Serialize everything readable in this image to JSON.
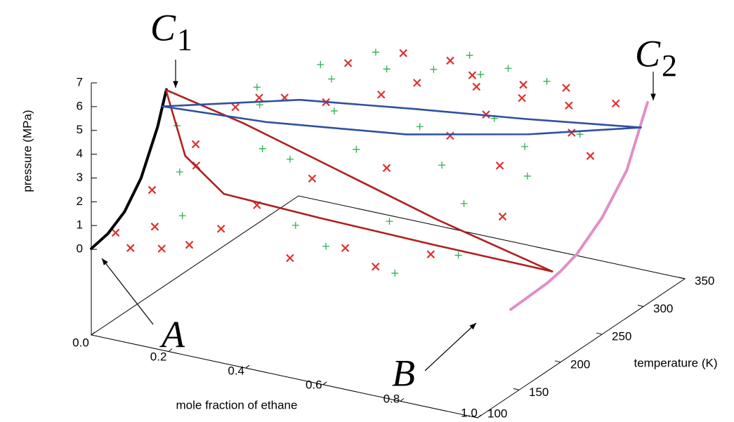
{
  "chart_data": {
    "type": "scatter3d",
    "xlabel": "mole fraction of ethane",
    "ylabel": "temperature (K)",
    "zlabel": "pressure (MPa)",
    "xlim": [
      0,
      1
    ],
    "ylim": [
      100,
      350
    ],
    "zlim": [
      -3.6,
      7
    ],
    "xticks": [
      {
        "value": 0,
        "label": "0.0"
      },
      0.2,
      0.4,
      0.6,
      0.8,
      {
        "value": 1,
        "label": "1.0"
      }
    ],
    "yticks": [
      100,
      150,
      200,
      250,
      300,
      350
    ],
    "zticks": [
      0,
      1,
      2,
      3,
      4,
      5,
      6,
      7
    ],
    "series": [
      {
        "marker": "x",
        "color": "#e03030",
        "x": [
          0.02,
          0.05,
          0.08,
          0.1,
          0.12,
          0.15,
          0.18,
          0.2,
          0.22,
          0.25,
          0.3,
          0.35,
          0.4,
          0.45,
          0.5,
          0.55,
          0.6,
          0.65,
          0.7,
          0.75,
          0.8,
          0.85,
          0.9,
          0.95,
          0.97,
          0.3,
          0.4,
          0.5,
          0.6,
          0.7,
          0.8,
          0.2,
          0.1,
          0.45,
          0.55,
          0.65,
          0.75,
          0.85
        ],
        "y": [
          120,
          150,
          110,
          130,
          170,
          115,
          190,
          125,
          200,
          140,
          160,
          220,
          180,
          240,
          260,
          200,
          280,
          230,
          250,
          270,
          220,
          280,
          260,
          290,
          250,
          270,
          290,
          300,
          285,
          295,
          300,
          240,
          180,
          130,
          150,
          140,
          160,
          200
        ],
        "z": [
          0.3,
          1.5,
          0.1,
          0.6,
          3.2,
          0.2,
          4.5,
          0.3,
          4.8,
          0.8,
          1.5,
          4.6,
          2.5,
          4.8,
          5.0,
          3.0,
          5.2,
          4.0,
          4.6,
          5.0,
          3.5,
          4.8,
          4.3,
          5.0,
          3.8,
          4.9,
          5.2,
          5.0,
          4.6,
          4.8,
          4.9,
          3.8,
          2.0,
          0.5,
          0.8,
          0.6,
          1.0,
          2.0
        ]
      },
      {
        "marker": "+",
        "color": "#30b050",
        "x": [
          0.05,
          0.1,
          0.15,
          0.2,
          0.25,
          0.3,
          0.35,
          0.4,
          0.45,
          0.5,
          0.55,
          0.6,
          0.65,
          0.7,
          0.75,
          0.8,
          0.85,
          0.9,
          0.3,
          0.4,
          0.5,
          0.6,
          0.7,
          0.8,
          0.15,
          0.25,
          0.35,
          0.55,
          0.65,
          0.75
        ],
        "y": [
          180,
          160,
          140,
          210,
          190,
          250,
          230,
          270,
          210,
          280,
          240,
          290,
          220,
          260,
          200,
          250,
          230,
          270,
          200,
          160,
          150,
          180,
          140,
          170,
          230,
          260,
          280,
          300,
          300,
          300
        ],
        "z": [
          3.5,
          2.2,
          1.0,
          4.2,
          3.0,
          4.7,
          4.0,
          5.0,
          3.2,
          5.1,
          3.8,
          5.0,
          3.0,
          4.2,
          2.2,
          3.6,
          3.0,
          4.0,
          2.5,
          1.0,
          0.7,
          1.4,
          0.5,
          0.9,
          4.3,
          4.9,
          5.3,
          5.4,
          5.2,
          5.0
        ]
      }
    ],
    "lines": [
      {
        "color": "#000000",
        "x": [
          0,
          0,
          0,
          0,
          0,
          0
        ],
        "y": [
          100,
          120,
          140,
          160,
          180,
          190.6
        ],
        "z": [
          0.03,
          0.19,
          0.64,
          1.59,
          3.28,
          4.6
        ]
      },
      {
        "color": "#e090c8",
        "x": [
          1,
          1,
          1,
          1,
          1,
          1,
          1
        ],
        "y": [
          140,
          184,
          200,
          220,
          250,
          280,
          305
        ],
        "z": [
          0.02,
          0.1,
          0.22,
          0.49,
          1.3,
          2.6,
          4.87
        ]
      },
      {
        "color": "#b02020",
        "x": [
          0,
          0.2,
          0.44,
          0.7,
          1
        ],
        "y": [
          190,
          190,
          190,
          190,
          190
        ],
        "z": [
          4.6,
          3.9,
          2.8,
          1.6,
          0.45
        ]
      },
      {
        "color": "#b02020",
        "x": [
          0,
          0.05,
          0.15,
          0.4,
          0.7,
          1
        ],
        "y": [
          190,
          190,
          190,
          190,
          190,
          190
        ],
        "z": [
          4.6,
          2.0,
          0.75,
          0.6,
          0.5,
          0.45
        ]
      },
      {
        "color": "#3050a0",
        "x": [
          0,
          0.25,
          0.5,
          0.75,
          1
        ],
        "y": [
          186,
          235,
          256,
          275,
          297
        ],
        "z": [
          4,
          4,
          4,
          4,
          4
        ]
      },
      {
        "color": "#3050a0",
        "x": [
          0,
          0.25,
          0.56,
          0.8,
          1
        ],
        "y": [
          186,
          195,
          219,
          255,
          297
        ],
        "z": [
          4,
          4,
          4,
          4,
          4
        ]
      }
    ],
    "annotations": [
      {
        "text": "C",
        "subscript": "1"
      },
      {
        "text": "C",
        "subscript": "2"
      },
      {
        "text": "A"
      },
      {
        "text": "B"
      }
    ]
  }
}
